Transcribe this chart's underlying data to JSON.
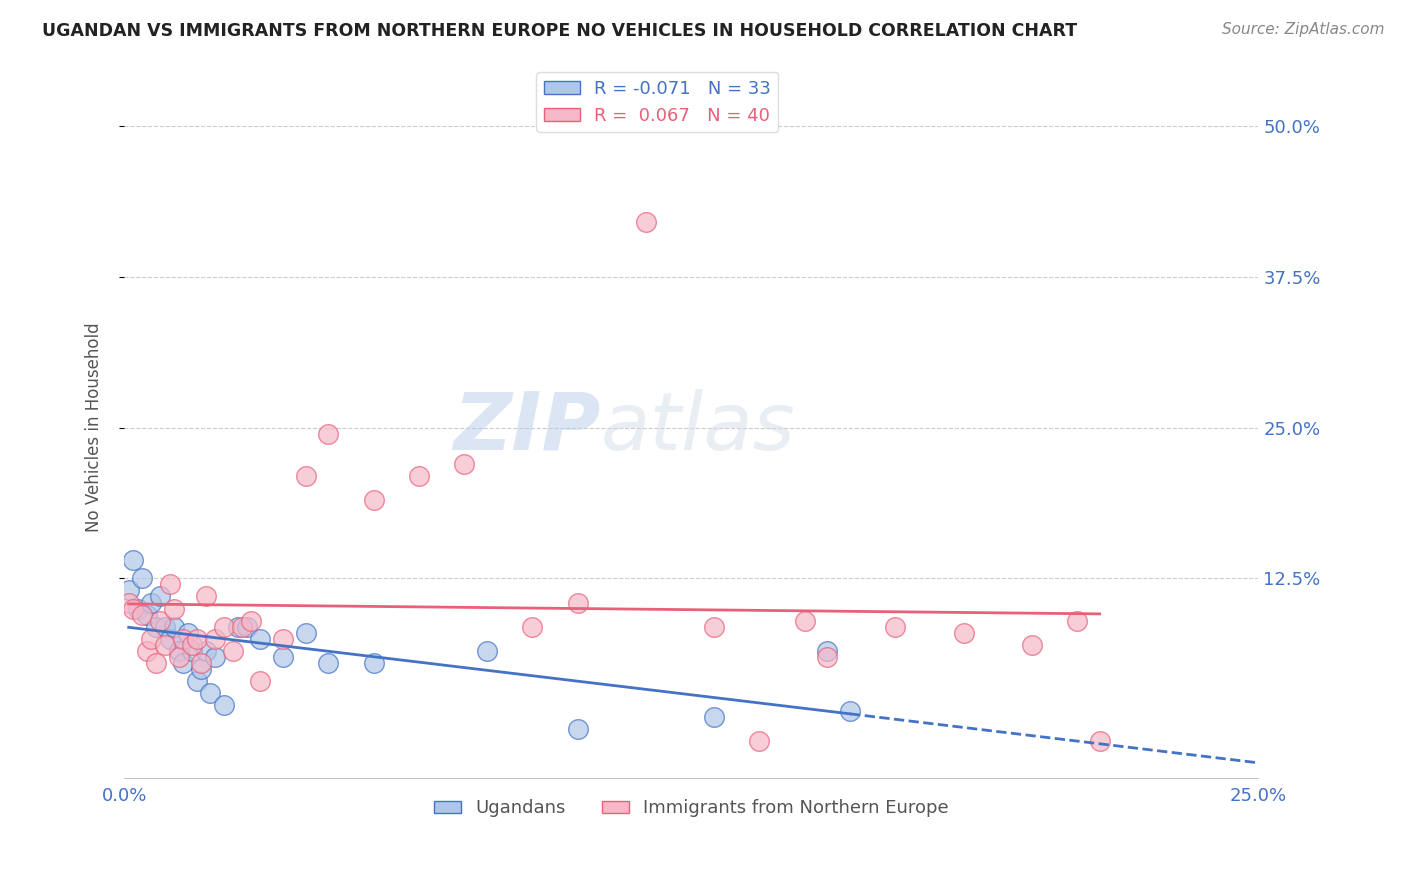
{
  "title": "UGANDAN VS IMMIGRANTS FROM NORTHERN EUROPE NO VEHICLES IN HOUSEHOLD CORRELATION CHART",
  "source_text": "Source: ZipAtlas.com",
  "ylabel": "No Vehicles in Household",
  "xlim": [
    0.0,
    0.25
  ],
  "ylim": [
    -0.04,
    0.54
  ],
  "ytick_positions": [
    0.125,
    0.25,
    0.375,
    0.5
  ],
  "ytick_labels": [
    "12.5%",
    "25.0%",
    "37.5%",
    "50.0%"
  ],
  "blue_R": -0.071,
  "blue_N": 33,
  "pink_R": 0.067,
  "pink_N": 40,
  "blue_color": "#AEC6E8",
  "pink_color": "#F4B8C8",
  "blue_line_color": "#4472C4",
  "pink_line_color": "#E8607A",
  "legend_label_blue": "Ugandans",
  "legend_label_pink": "Immigrants from Northern Europe",
  "watermark": "ZIPatlas",
  "background_color": "#FFFFFF",
  "blue_x": [
    0.001,
    0.002,
    0.003,
    0.004,
    0.005,
    0.006,
    0.007,
    0.008,
    0.009,
    0.01,
    0.011,
    0.012,
    0.013,
    0.014,
    0.015,
    0.016,
    0.017,
    0.018,
    0.019,
    0.02,
    0.022,
    0.025,
    0.027,
    0.03,
    0.035,
    0.04,
    0.045,
    0.055,
    0.08,
    0.1,
    0.13,
    0.155,
    0.16
  ],
  "blue_y": [
    0.115,
    0.14,
    0.1,
    0.125,
    0.095,
    0.105,
    0.085,
    0.11,
    0.085,
    0.075,
    0.085,
    0.065,
    0.055,
    0.08,
    0.065,
    0.04,
    0.05,
    0.065,
    0.03,
    0.06,
    0.02,
    0.085,
    0.085,
    0.075,
    0.06,
    0.08,
    0.055,
    0.055,
    0.065,
    0.0,
    0.01,
    0.065,
    0.015
  ],
  "pink_x": [
    0.001,
    0.002,
    0.004,
    0.005,
    0.006,
    0.007,
    0.008,
    0.009,
    0.01,
    0.011,
    0.012,
    0.013,
    0.015,
    0.016,
    0.017,
    0.018,
    0.02,
    0.022,
    0.024,
    0.026,
    0.028,
    0.03,
    0.035,
    0.04,
    0.045,
    0.055,
    0.065,
    0.075,
    0.09,
    0.1,
    0.115,
    0.13,
    0.14,
    0.15,
    0.155,
    0.17,
    0.185,
    0.2,
    0.21,
    0.215
  ],
  "pink_y": [
    0.105,
    0.1,
    0.095,
    0.065,
    0.075,
    0.055,
    0.09,
    0.07,
    0.12,
    0.1,
    0.06,
    0.075,
    0.07,
    0.075,
    0.055,
    0.11,
    0.075,
    0.085,
    0.065,
    0.085,
    0.09,
    0.04,
    0.075,
    0.21,
    0.245,
    0.19,
    0.21,
    0.22,
    0.085,
    0.105,
    0.42,
    0.085,
    -0.01,
    0.09,
    0.06,
    0.085,
    0.08,
    0.07,
    0.09,
    -0.01
  ]
}
